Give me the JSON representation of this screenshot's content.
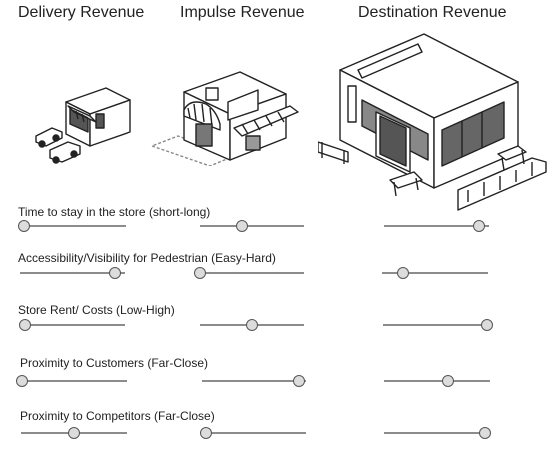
{
  "columns": [
    {
      "title": "Delivery Revenue"
    },
    {
      "title": "Impulse Revenue"
    },
    {
      "title": "Destination Revenue"
    }
  ],
  "criteria": [
    {
      "label": "Time to stay in the store (short-long)",
      "values": [
        0.0,
        0.4,
        0.9
      ]
    },
    {
      "label": "Accessibility/Visibility for Pedestrian (Easy-Hard)",
      "values": [
        0.9,
        0.0,
        0.2
      ]
    },
    {
      "label": "Store Rent/ Costs (Low-High)",
      "values": [
        0.0,
        0.5,
        1.0
      ]
    },
    {
      "label": "Proximity to Customers (Far-Close)",
      "values": [
        0.0,
        0.93,
        0.6
      ]
    },
    {
      "label": "Proximity to Competitors (Far-Close)",
      "values": [
        0.5,
        0.0,
        0.95
      ]
    }
  ]
}
